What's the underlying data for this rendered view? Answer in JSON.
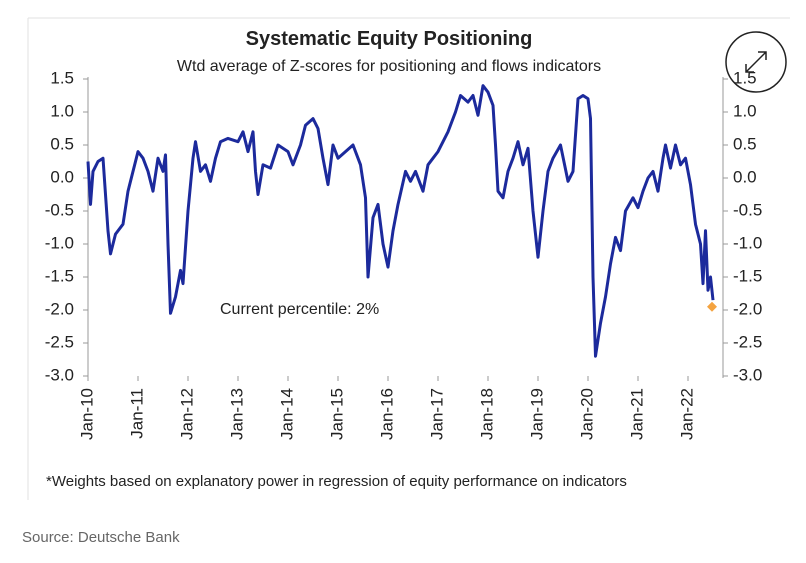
{
  "chart_data": {
    "type": "line",
    "title": "Systematic Equity Positioning",
    "subtitle": "Wtd average of Z-scores for positioning and flows indicators",
    "annotation": "Current percentile: 2%",
    "footnote": "*Weights based on explanatory power in regression of equity performance on indicators",
    "source": "Source: Deutsche Bank",
    "xlim": [
      2010,
      2022.7
    ],
    "xticks": [
      {
        "value": 2010,
        "label": "Jan-10"
      },
      {
        "value": 2011,
        "label": "Jan-11"
      },
      {
        "value": 2012,
        "label": "Jan-12"
      },
      {
        "value": 2013,
        "label": "Jan-13"
      },
      {
        "value": 2014,
        "label": "Jan-14"
      },
      {
        "value": 2015,
        "label": "Jan-15"
      },
      {
        "value": 2016,
        "label": "Jan-16"
      },
      {
        "value": 2017,
        "label": "Jan-17"
      },
      {
        "value": 2018,
        "label": "Jan-18"
      },
      {
        "value": 2019,
        "label": "Jan-19"
      },
      {
        "value": 2020,
        "label": "Jan-20"
      },
      {
        "value": 2021,
        "label": "Jan-21"
      },
      {
        "value": 2022,
        "label": "Jan-22"
      }
    ],
    "ylim": [
      -3.0,
      1.5
    ],
    "yticks": [
      {
        "value": 1.5,
        "label": "1.5"
      },
      {
        "value": 1.0,
        "label": "1.0"
      },
      {
        "value": 0.5,
        "label": "0.5"
      },
      {
        "value": 0.0,
        "label": "0.0"
      },
      {
        "value": -0.5,
        "label": "-0.5"
      },
      {
        "value": -1.0,
        "label": "-1.0"
      },
      {
        "value": -1.5,
        "label": "-1.5"
      },
      {
        "value": -2.0,
        "label": "-2.0"
      },
      {
        "value": -2.5,
        "label": "-2.5"
      },
      {
        "value": -3.0,
        "label": "-3.0"
      }
    ],
    "grid": false,
    "x": [
      2010.0,
      2010.05,
      2010.1,
      2010.2,
      2010.3,
      2010.4,
      2010.45,
      2010.55,
      2010.7,
      2010.8,
      2010.9,
      2011.0,
      2011.1,
      2011.2,
      2011.3,
      2011.4,
      2011.5,
      2011.55,
      2011.6,
      2011.65,
      2011.75,
      2011.85,
      2011.9,
      2012.0,
      2012.1,
      2012.15,
      2012.25,
      2012.35,
      2012.45,
      2012.55,
      2012.65,
      2012.8,
      2013.0,
      2013.1,
      2013.2,
      2013.3,
      2013.35,
      2013.4,
      2013.5,
      2013.65,
      2013.8,
      2014.0,
      2014.1,
      2014.25,
      2014.35,
      2014.5,
      2014.6,
      2014.7,
      2014.8,
      2014.9,
      2015.0,
      2015.15,
      2015.3,
      2015.45,
      2015.55,
      2015.6,
      2015.7,
      2015.8,
      2015.9,
      2016.0,
      2016.1,
      2016.2,
      2016.35,
      2016.45,
      2016.55,
      2016.7,
      2016.8,
      2016.9,
      2017.0,
      2017.2,
      2017.35,
      2017.45,
      2017.6,
      2017.7,
      2017.8,
      2017.9,
      2018.0,
      2018.1,
      2018.15,
      2018.2,
      2018.3,
      2018.4,
      2018.5,
      2018.6,
      2018.7,
      2018.8,
      2018.9,
      2019.0,
      2019.1,
      2019.2,
      2019.3,
      2019.45,
      2019.6,
      2019.7,
      2019.8,
      2019.9,
      2020.0,
      2020.05,
      2020.1,
      2020.15,
      2020.25,
      2020.35,
      2020.45,
      2020.55,
      2020.65,
      2020.75,
      2020.9,
      2021.0,
      2021.1,
      2021.2,
      2021.3,
      2021.4,
      2021.5,
      2021.55,
      2021.65,
      2021.75,
      2021.85,
      2021.95,
      2022.05,
      2022.15,
      2022.25,
      2022.3,
      2022.35,
      2022.4,
      2022.45,
      2022.5
    ],
    "series": [
      {
        "name": "Systematic Equity Positioning",
        "color": "#1c2a9c",
        "values": [
          0.25,
          -0.4,
          0.1,
          0.25,
          0.3,
          -0.8,
          -1.15,
          -0.85,
          -0.7,
          -0.2,
          0.1,
          0.4,
          0.3,
          0.1,
          -0.2,
          0.3,
          0.1,
          0.35,
          -1.0,
          -2.05,
          -1.8,
          -1.4,
          -1.6,
          -0.5,
          0.3,
          0.55,
          0.1,
          0.2,
          -0.05,
          0.3,
          0.55,
          0.6,
          0.55,
          0.7,
          0.4,
          0.7,
          0.1,
          -0.25,
          0.2,
          0.15,
          0.5,
          0.4,
          0.2,
          0.5,
          0.8,
          0.9,
          0.75,
          0.3,
          -0.1,
          0.5,
          0.3,
          0.4,
          0.5,
          0.2,
          -0.3,
          -1.5,
          -0.6,
          -0.4,
          -1.0,
          -1.35,
          -0.8,
          -0.4,
          0.1,
          -0.05,
          0.1,
          -0.2,
          0.2,
          0.3,
          0.4,
          0.7,
          1.0,
          1.25,
          1.15,
          1.25,
          0.95,
          1.4,
          1.3,
          1.1,
          0.5,
          -0.2,
          -0.3,
          0.1,
          0.3,
          0.55,
          0.2,
          0.45,
          -0.5,
          -1.2,
          -0.5,
          0.1,
          0.3,
          0.5,
          -0.05,
          0.1,
          1.2,
          1.25,
          1.2,
          0.9,
          -1.5,
          -2.7,
          -2.2,
          -1.8,
          -1.3,
          -0.9,
          -1.1,
          -0.5,
          -0.3,
          -0.45,
          -0.2,
          0.0,
          0.1,
          -0.2,
          0.3,
          0.5,
          0.15,
          0.5,
          0.2,
          0.3,
          -0.1,
          -0.7,
          -1.0,
          -1.6,
          -0.8,
          -1.7,
          -1.5,
          -1.85
        ]
      }
    ],
    "current_point": {
      "x": 2022.48,
      "value": -1.95,
      "color": "#f4a340"
    }
  }
}
